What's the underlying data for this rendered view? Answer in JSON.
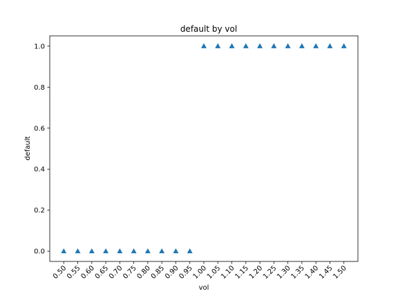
{
  "chart_data": {
    "type": "scatter",
    "title": "default by vol",
    "xlabel": "vol",
    "ylabel": "default",
    "marker": "triangle-up",
    "color": "#1f77b4",
    "x": [
      0.5,
      0.55,
      0.6,
      0.65,
      0.7,
      0.75,
      0.8,
      0.85,
      0.9,
      0.95,
      1.0,
      1.05,
      1.1,
      1.15,
      1.2,
      1.25,
      1.3,
      1.35,
      1.4,
      1.45,
      1.5
    ],
    "y": [
      0,
      0,
      0,
      0,
      0,
      0,
      0,
      0,
      0,
      0,
      1,
      1,
      1,
      1,
      1,
      1,
      1,
      1,
      1,
      1,
      1
    ],
    "xticks": [
      "0.50",
      "0.55",
      "0.60",
      "0.65",
      "0.70",
      "0.75",
      "0.80",
      "0.85",
      "0.90",
      "0.95",
      "1.00",
      "1.05",
      "1.10",
      "1.15",
      "1.20",
      "1.25",
      "1.30",
      "1.35",
      "1.40",
      "1.45",
      "1.50"
    ],
    "xtick_values": [
      0.5,
      0.55,
      0.6,
      0.65,
      0.7,
      0.75,
      0.8,
      0.85,
      0.9,
      0.95,
      1.0,
      1.05,
      1.1,
      1.15,
      1.2,
      1.25,
      1.3,
      1.35,
      1.4,
      1.45,
      1.5
    ],
    "xtick_rotation_deg": 45,
    "yticks": [
      "0.0",
      "0.2",
      "0.4",
      "0.6",
      "0.8",
      "1.0"
    ],
    "ytick_values": [
      0.0,
      0.2,
      0.4,
      0.6,
      0.8,
      1.0
    ],
    "xlim": [
      0.45,
      1.55
    ],
    "ylim": [
      -0.05,
      1.05
    ],
    "grid": false,
    "legend": "none"
  }
}
